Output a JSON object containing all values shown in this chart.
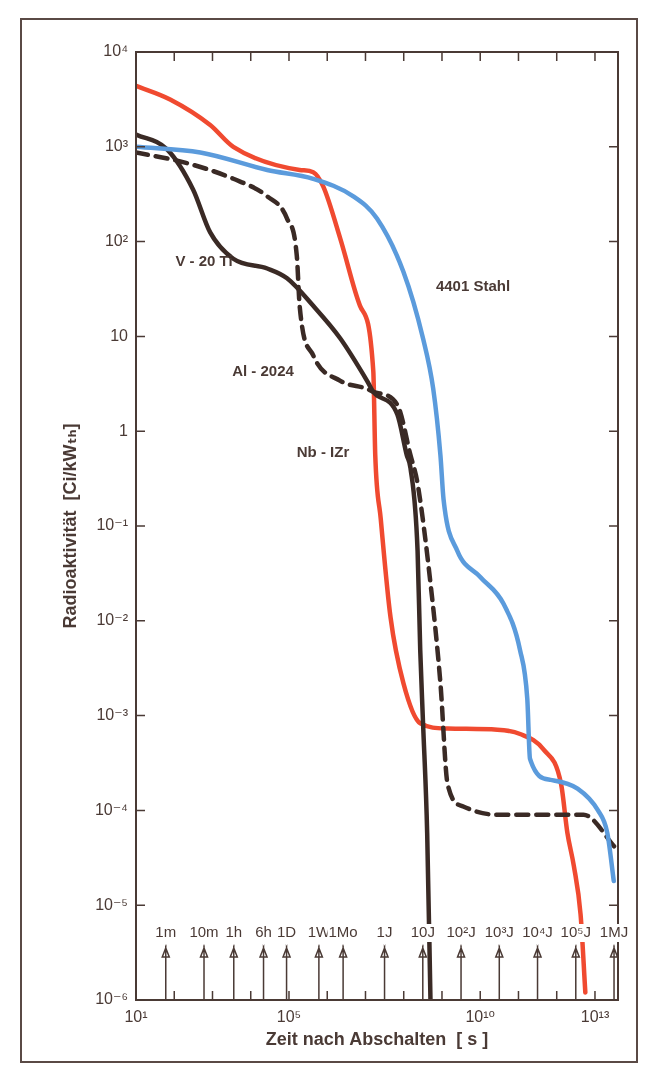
{
  "chart_data": {
    "type": "line",
    "log": "xy",
    "marker": "none",
    "xlabel": "Zeit nach Abschalten  [ s ]",
    "ylabel": "Radioaktivität  [Ci/kWₜₕ]",
    "xlim": [
      10,
      40000000000000.0
    ],
    "ylim": [
      1e-06,
      10000.0
    ],
    "xticks": [
      {
        "value": 10,
        "label": "10¹"
      },
      {
        "value": 100.0,
        "label": null
      },
      {
        "value": 1000.0,
        "label": null
      },
      {
        "value": 10000.0,
        "label": null
      },
      {
        "value": 100000.0,
        "label": "10⁵"
      },
      {
        "value": 1000000.0,
        "label": null
      },
      {
        "value": 10000000.0,
        "label": null
      },
      {
        "value": 100000000.0,
        "label": null
      },
      {
        "value": 1000000000.0,
        "label": null
      },
      {
        "value": 10000000000.0,
        "label": "10¹⁰"
      },
      {
        "value": 100000000000.0,
        "label": null
      },
      {
        "value": 1000000000000.0,
        "label": null
      },
      {
        "value": 10000000000000.0,
        "label": "10¹³"
      }
    ],
    "yticks": [
      {
        "value": 1e-06,
        "label": "10⁻⁶"
      },
      {
        "value": 1e-05,
        "label": "10⁻⁵"
      },
      {
        "value": 0.0001,
        "label": "10⁻⁴"
      },
      {
        "value": 0.001,
        "label": "10⁻³"
      },
      {
        "value": 0.01,
        "label": "10⁻²"
      },
      {
        "value": 0.1,
        "label": "10⁻¹"
      },
      1,
      10,
      {
        "value": 100,
        "label": "10²"
      },
      {
        "value": 1000,
        "label": "10³"
      },
      {
        "value": 10000,
        "label": "10⁴"
      }
    ],
    "series": [
      {
        "name": "4401 Stahl",
        "color": "#5b9bdc",
        "line_style": "solid",
        "x": [
          10,
          480,
          27000.0,
          430000.0,
          4800000.0,
          20000000.0,
          98000000.0,
          320000000.0,
          590000000.0,
          910000000.0,
          1100000000.0,
          2500000000.0,
          10000000000.0,
          41000000000.0,
          110000000000.0,
          170000000000.0,
          200000000000.0,
          690000000000.0,
          3500000000000.0,
          12000000000000.0,
          21000000000000.0,
          31000000000000.0
        ],
        "values": [
          1000,
          870,
          570,
          460,
          300,
          175,
          48,
          9.5,
          2.8,
          0.56,
          0.19,
          0.055,
          0.029,
          0.015,
          0.0049,
          0.0015,
          0.00035,
          0.00021,
          0.00017,
          0.0001,
          5.8e-05,
          1.8e-05
        ]
      },
      {
        "name": "V - 20 Ti",
        "color": "#3a2a25",
        "line_style": "solid",
        "x": [
          10,
          65,
          310,
          870,
          3500,
          27000.0,
          89000.0,
          430000.0,
          2200000.0,
          11000000.0,
          16000000.0,
          68000000.0,
          120000000.0,
          150000000.0,
          230000000.0,
          270000000.0,
          320000000.0,
          410000000.0,
          500000000.0
        ],
        "values": [
          1350,
          940,
          355,
          125,
          66,
          52,
          41,
          21,
          9.5,
          3.4,
          2.6,
          1.5,
          0.56,
          0.41,
          0.055,
          0.0049,
          0.00083,
          5.8e-05,
          1e-06
        ]
      },
      {
        "name": "Al - 2024",
        "color": "#3a2a25",
        "line_style": "dashed",
        "x": [
          10,
          170,
          3500,
          27000.0,
          89000.0,
          160000.0,
          190000.0,
          430000.0,
          2200000.0,
          11000000.0,
          16000000.0,
          68000000.0,
          150000000.0,
          230000000.0,
          500000000.0,
          910000000.0,
          1400000000.0,
          3600000000.0,
          28000000000.0,
          5000000000000.0,
          35000000000000.0
        ],
        "values": [
          870,
          690,
          460,
          300,
          175,
          71,
          21,
          6.3,
          3.4,
          2.8,
          2.6,
          1.9,
          0.56,
          0.28,
          0.025,
          0.0022,
          0.00019,
          0.00011,
          9e-05,
          9e-05,
          4e-05
        ]
      },
      {
        "name": "Nb - IZr",
        "color": "#f04a30",
        "line_style": "solid",
        "x": [
          10,
          78,
          870,
          3500,
          190000.0,
          430000.0,
          790000.0,
          2200000.0,
          7200000.0,
          16000000.0,
          18000000.0,
          25000000.0,
          45000000.0,
          98000000.0,
          270000000.0,
          1400000000.0,
          28000000000.0,
          110000000000.0,
          450000000000.0,
          1300000000000.0,
          1900000000000.0,
          2800000000000.0,
          4200000000000.0,
          5600000000000.0
        ],
        "values": [
          4400,
          3160,
          1700,
          1000,
          570,
          540,
          380,
          107,
          21,
          4.3,
          0.56,
          0.12,
          0.011,
          0.0022,
          0.00083,
          0.00073,
          0.00071,
          0.00064,
          0.00044,
          0.00019,
          5.8e-05,
          2.6e-05,
          8e-06,
          1.2e-06
        ]
      }
    ],
    "ref_lines": [
      {
        "axis": "x",
        "value": 60,
        "label": "1m"
      },
      {
        "axis": "x",
        "value": 600,
        "label": "10m"
      },
      {
        "axis": "x",
        "value": 3600,
        "label": "1h"
      },
      {
        "axis": "x",
        "value": 21600,
        "label": "6h"
      },
      {
        "axis": "x",
        "value": 86400,
        "label": "1D"
      },
      {
        "axis": "x",
        "value": 604800,
        "label": "1W"
      },
      {
        "axis": "x",
        "value": 2600000.0,
        "label": "1Mo"
      },
      {
        "axis": "x",
        "value": 31500000.0,
        "label": "1J"
      },
      {
        "axis": "x",
        "value": 315000000.0,
        "label": "10J"
      },
      {
        "axis": "x",
        "value": 3150000000.0,
        "label": "10²J"
      },
      {
        "axis": "x",
        "value": 31500000000.0,
        "label": "10³J"
      },
      {
        "axis": "x",
        "value": 315000000000.0,
        "label": "10⁴J"
      },
      {
        "axis": "x",
        "value": 3150000000000.0,
        "label": "10⁵J"
      },
      {
        "axis": "x",
        "value": 31500000000000.0,
        "label": "1MJ"
      }
    ]
  }
}
